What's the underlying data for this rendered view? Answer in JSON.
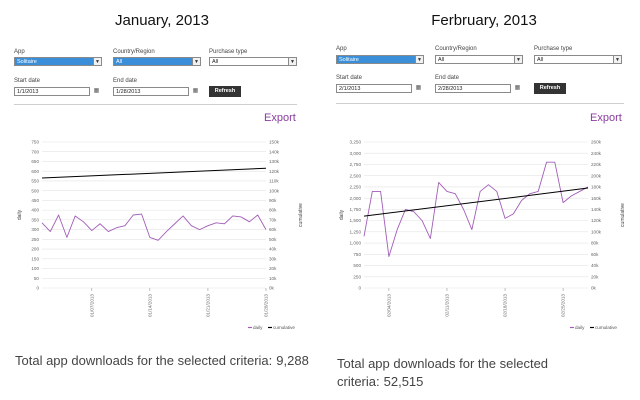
{
  "panels": [
    {
      "title": "January, 2013",
      "filters": {
        "app_label": "App",
        "app_value": "Solitaire",
        "country_label": "Country/Region",
        "country_value": "All",
        "purchase_label": "Purchase type",
        "purchase_value": "All",
        "start_label": "Start date",
        "start_value": "1/1/2013",
        "end_label": "End date",
        "end_value": "1/28/2013",
        "refresh_label": "Refresh"
      },
      "export_label": "Export",
      "total_text": "Total app downloads for the selected criteria:",
      "total_count": "9,288",
      "chart_data": {
        "type": "line",
        "ylabel": "daily",
        "y2label": "cumulative",
        "left_ticks": [
          "750",
          "700",
          "650",
          "600",
          "550",
          "500",
          "450",
          "400",
          "350",
          "300",
          "250",
          "200",
          "150",
          "100",
          "50",
          "0"
        ],
        "right_ticks": [
          "150k",
          "140k",
          "130k",
          "120k",
          "110k",
          "100k",
          "90k",
          "80k",
          "70k",
          "60k",
          "50k",
          "40k",
          "30k",
          "20k",
          "10k",
          "0k"
        ],
        "ylim": [
          0,
          750
        ],
        "y2lim": [
          0,
          150000
        ],
        "x_tick_labels": [
          "01/07/2013",
          "01/14/2013",
          "01/21/2013",
          "01/28/2013"
        ],
        "x_tick_index": [
          6,
          13,
          20,
          27
        ],
        "legend": [
          "daily",
          "cumulative"
        ],
        "legend_position": "bottom-right",
        "series": [
          {
            "name": "daily",
            "axis": "left",
            "color": "#a25db8",
            "values": [
              335,
              290,
              375,
              260,
              370,
              340,
              295,
              330,
              290,
              310,
              320,
              375,
              380,
              260,
              245,
              290,
              330,
              370,
              320,
              300,
              320,
              335,
              330,
              370,
              365,
              340,
              375,
              300
            ]
          },
          {
            "name": "cumulative",
            "axis": "right",
            "color": "#000000",
            "x": [
              0,
              27
            ],
            "values": [
              113000,
              123000
            ]
          }
        ]
      }
    },
    {
      "title": "Ferbruary, 2013",
      "filters": {
        "app_label": "App",
        "app_value": "Solitaire",
        "country_label": "Country/Region",
        "country_value": "All",
        "purchase_label": "Purchase type",
        "purchase_value": "All",
        "start_label": "Start date",
        "start_value": "2/1/2013",
        "end_label": "End date",
        "end_value": "2/28/2013",
        "refresh_label": "Refresh"
      },
      "export_label": "Export",
      "total_text": "Total app downloads for the selected criteria:",
      "total_count": "52,515",
      "chart_data": {
        "type": "line",
        "ylabel": "daily",
        "y2label": "cumulative",
        "left_ticks": [
          "3,250",
          "3,000",
          "2,750",
          "2,500",
          "2,250",
          "2,000",
          "1,750",
          "1,500",
          "1,250",
          "1,000",
          "750",
          "500",
          "250",
          "0"
        ],
        "right_ticks": [
          "260k",
          "240k",
          "220k",
          "200k",
          "180k",
          "160k",
          "140k",
          "120k",
          "100k",
          "80k",
          "60k",
          "40k",
          "20k",
          "0k"
        ],
        "ylim": [
          0,
          3250
        ],
        "y2lim": [
          0,
          260000
        ],
        "x_tick_labels": [
          "02/04/2013",
          "02/11/2013",
          "02/18/2013",
          "02/25/2013"
        ],
        "x_tick_index": [
          3,
          10,
          17,
          24
        ],
        "legend": [
          "daily",
          "cumulative"
        ],
        "legend_position": "bottom-right",
        "series": [
          {
            "name": "daily",
            "axis": "left",
            "color": "#a25db8",
            "values": [
              1150,
              2150,
              2150,
              700,
              1300,
              1750,
              1700,
              1500,
              1100,
              2350,
              2150,
              2100,
              1750,
              1300,
              2150,
              2300,
              2150,
              1550,
              1650,
              1950,
              2100,
              2150,
              2800,
              2800,
              1900,
              2050,
              2150,
              2250
            ]
          },
          {
            "name": "cumulative",
            "axis": "right",
            "color": "#000000",
            "x": [
              0,
              27
            ],
            "values": [
              128000,
              178000
            ]
          }
        ]
      }
    }
  ]
}
